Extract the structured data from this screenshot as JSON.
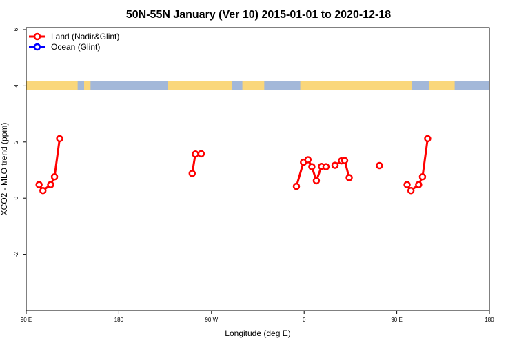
{
  "chart_data": {
    "type": "line",
    "title": "50N-55N January (Ver 10)   2015-01-01 to 2020-12-18",
    "xlabel": "Longitude (deg E)",
    "ylabel": "XCO2 - MLO trend (ppm)",
    "xlim": [
      90,
      450
    ],
    "ylim": [
      -4,
      6
    ],
    "x_ticks": [
      {
        "value": 90,
        "label": "90 E"
      },
      {
        "value": 162,
        "label": "180"
      },
      {
        "value": 234,
        "label": "90 W"
      },
      {
        "value": 306,
        "label": "0"
      },
      {
        "value": 378,
        "label": "90 E"
      },
      {
        "value": 450,
        "label": "180"
      }
    ],
    "y_ticks": [
      {
        "value": -2,
        "label": "-2"
      },
      {
        "value": 0,
        "label": "0"
      },
      {
        "value": 2,
        "label": "2"
      },
      {
        "value": 4,
        "label": "4"
      },
      {
        "value": 6,
        "label": "6"
      }
    ],
    "legend": {
      "position": "top-left",
      "entries": [
        {
          "name": "Land (Nadir&Glint)",
          "color": "#ff0000"
        },
        {
          "name": "Ocean (Glint)",
          "color": "#0000ff"
        }
      ]
    },
    "series": [
      {
        "name": "Land (Nadir&Glint)",
        "color": "#ff0000",
        "segments": [
          [
            [
              100,
              0.48
            ],
            [
              103,
              0.27
            ],
            [
              109,
              0.48
            ],
            [
              112,
              0.76
            ],
            [
              116,
              2.12
            ]
          ],
          [
            [
              219,
              0.88
            ],
            [
              221.5,
              1.57
            ],
            [
              226,
              1.58
            ]
          ],
          [
            [
              300,
              0.42
            ],
            [
              305.5,
              1.28
            ],
            [
              309,
              1.37
            ],
            [
              312,
              1.12
            ],
            [
              315.5,
              0.62
            ],
            [
              319.5,
              1.13
            ],
            [
              323,
              1.12
            ]
          ],
          [
            [
              330,
              1.17
            ],
            [
              335,
              1.33
            ],
            [
              337.5,
              1.34
            ],
            [
              341,
              0.73
            ]
          ],
          [
            [
              364.5,
              1.16
            ]
          ],
          [
            [
              386,
              0.48
            ],
            [
              389,
              0.27
            ],
            [
              395,
              0.48
            ],
            [
              398,
              0.76
            ],
            [
              402,
              2.12
            ]
          ]
        ]
      },
      {
        "name": "Ocean (Glint)",
        "color": "#0000ff",
        "segments": []
      }
    ],
    "land_ocean_strip": {
      "y_center": 4,
      "land_color": "#fad77b",
      "ocean_color": "#a3b8d9",
      "land_ranges": [
        [
          90,
          130
        ],
        [
          135,
          140
        ],
        [
          200,
          250
        ],
        [
          258,
          275
        ],
        [
          303,
          390
        ],
        [
          403,
          423
        ]
      ]
    },
    "grid": false
  }
}
